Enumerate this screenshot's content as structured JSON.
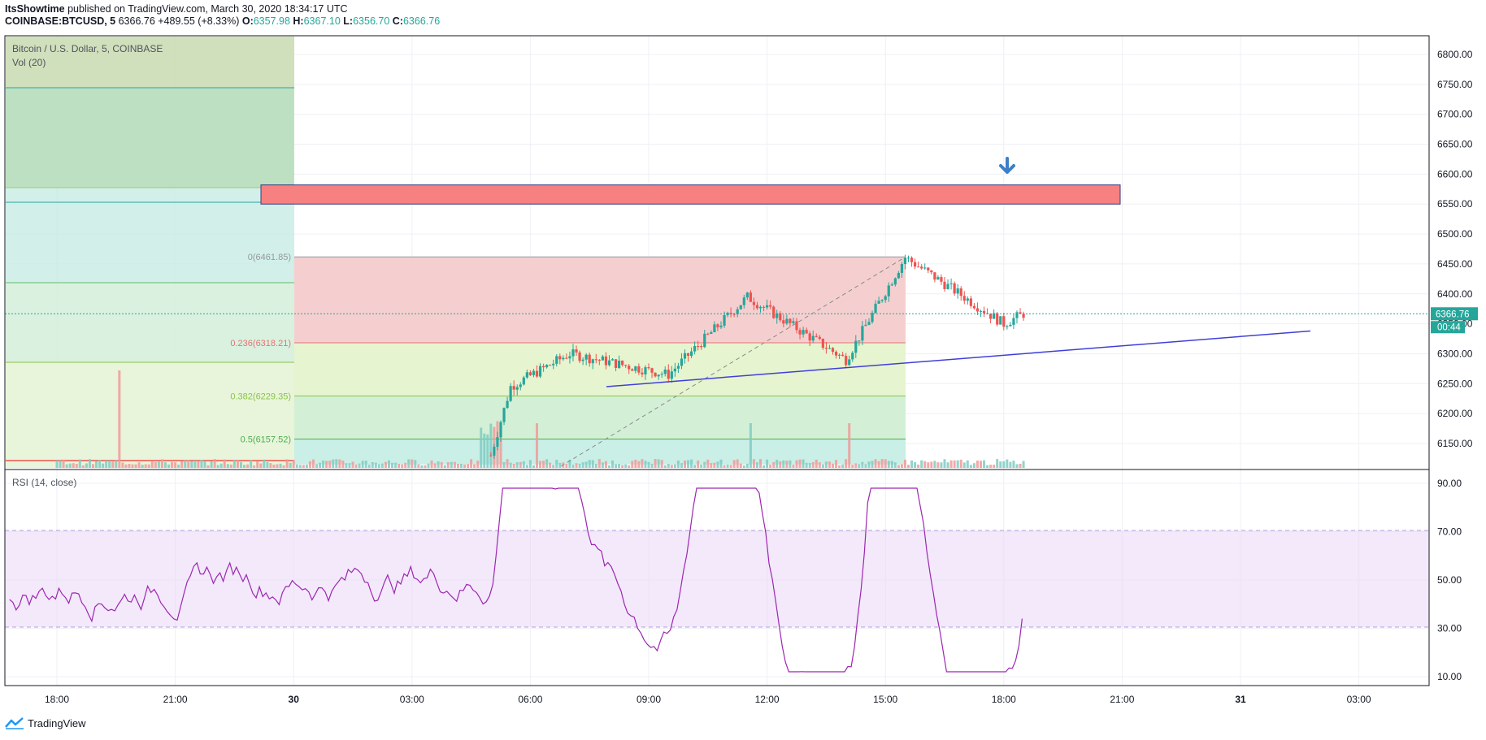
{
  "header": {
    "author": "ItsShowtime",
    "published_text": "published on TradingView.com, March 30, 2020 18:34:17 UTC",
    "symbol": "COINBASE:BTCUSD, 5",
    "last": "6366.76",
    "change": "+489.55 (+8.33%)",
    "o_label": "O:",
    "o": "6357.98",
    "h_label": "H:",
    "h": "6367.10",
    "l_label": "L:",
    "l": "6356.70",
    "c_label": "C:",
    "c": "6366.76"
  },
  "legend": {
    "title": "Bitcoin / U.S. Dollar, 5, COINBASE",
    "volume": "Vol (20)",
    "rsi": "RSI (14, close)"
  },
  "price_tag": {
    "price": "6366.76",
    "countdown": "00:44"
  },
  "footer": {
    "brand": "TradingView"
  },
  "colors": {
    "up": "#26a69a",
    "down": "#ef5350",
    "rsi_line": "#9c27b0",
    "trendline": "#3f3fd9",
    "resistance_zone": "#f78080",
    "arrow": "#3c7fc9"
  },
  "chart_data": {
    "type": "candlestick",
    "symbol": "COINBASE:BTCUSD",
    "interval": "5",
    "x_axis_ticks": [
      "18:00",
      "21:00",
      "30",
      "03:00",
      "06:00",
      "09:00",
      "12:00",
      "15:00",
      "18:00",
      "21:00",
      "31",
      "03:00"
    ],
    "price_axis": {
      "range": [
        6105,
        6820
      ],
      "ticks": [
        "6800.00",
        "6750.00",
        "6700.00",
        "6650.00",
        "6600.00",
        "6550.00",
        "6500.00",
        "6450.00",
        "6400.00",
        "6350.00",
        "6300.00",
        "6250.00",
        "6200.00",
        "6150.00"
      ]
    },
    "rsi_axis": {
      "range": [
        5,
        95
      ],
      "ticks": [
        "90.00",
        "70.00",
        "50.00",
        "30.00",
        "10.00"
      ],
      "band": [
        30,
        70
      ]
    },
    "fibonacci": [
      {
        "level": "0",
        "price": 6461.85,
        "label": "0(6461.85)",
        "color": "#9598a1"
      },
      {
        "level": "0.236",
        "price": 6318.21,
        "label": "0.236(6318.21)",
        "color": "#e57373"
      },
      {
        "level": "0.382",
        "price": 6229.35,
        "label": "0.382(6229.35)",
        "color": "#8bc34a"
      },
      {
        "level": "0.5",
        "price": 6157.52,
        "label": "0.5(6157.52)",
        "color": "#4caf50"
      }
    ],
    "resistance_zone": {
      "from": 6550,
      "to": 6582
    },
    "trendline_prices": [
      6245,
      6338
    ],
    "key_points": [
      {
        "time": "18:00",
        "price": 6115
      },
      {
        "time": "05:00",
        "price": 6130
      },
      {
        "time": "05:30",
        "price": 6245
      },
      {
        "time": "07:00",
        "price": 6300
      },
      {
        "time": "09:30",
        "price": 6265
      },
      {
        "time": "11:30",
        "price": 6395
      },
      {
        "time": "14:00",
        "price": 6290
      },
      {
        "time": "15:30",
        "price": 6461
      },
      {
        "time": "16:30",
        "price": 6350
      },
      {
        "time": "18:30",
        "price": 6366.76
      }
    ]
  }
}
